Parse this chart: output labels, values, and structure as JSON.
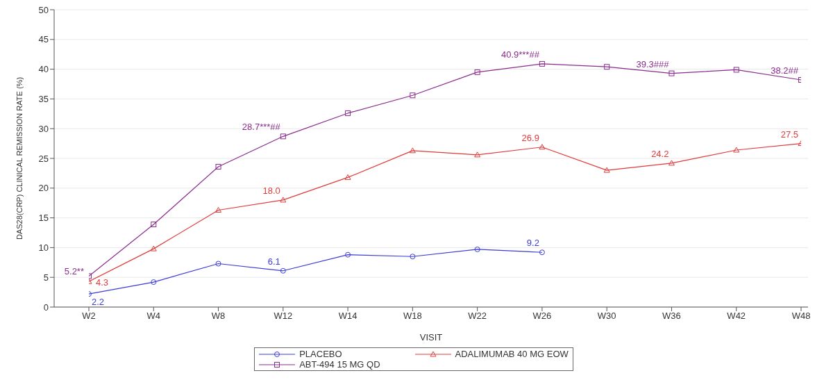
{
  "chart_data": {
    "type": "line",
    "xlabel": "VISIT",
    "ylabel": "DAS28(CRP) CLINICAL REMISSION RATE (%)",
    "categories": [
      "W2",
      "W4",
      "W8",
      "W12",
      "W14",
      "W18",
      "W22",
      "W26",
      "W30",
      "W36",
      "W42",
      "W48"
    ],
    "ylim": [
      0,
      50
    ],
    "yticks": [
      0,
      5,
      10,
      15,
      20,
      25,
      30,
      35,
      40,
      45,
      50
    ],
    "grid": "y",
    "legend": "bottom",
    "series": [
      {
        "name": "PLACEBO",
        "color": "#3a3ad8",
        "marker": "circle",
        "values": [
          2.2,
          4.2,
          7.3,
          6.1,
          8.8,
          8.5,
          9.7,
          9.2,
          null,
          null,
          null,
          null
        ],
        "value_labels": [
          "2.2",
          null,
          null,
          "6.1",
          null,
          null,
          null,
          "9.2",
          null,
          null,
          null,
          null
        ]
      },
      {
        "name": "ADALIMUMAB 40 MG EOW",
        "color": "#e03a3a",
        "marker": "triangle",
        "values": [
          4.3,
          9.8,
          16.3,
          18.0,
          21.8,
          26.3,
          25.6,
          26.9,
          23.0,
          24.2,
          26.4,
          27.5
        ],
        "value_labels": [
          "4.3",
          null,
          null,
          "18.0",
          null,
          null,
          null,
          "26.9",
          null,
          "24.2",
          null,
          "27.5"
        ]
      },
      {
        "name": "ABT-494 15 MG QD",
        "color": "#8a2b8e",
        "marker": "square",
        "values": [
          5.2,
          13.9,
          23.6,
          28.7,
          32.6,
          35.6,
          39.5,
          40.9,
          40.4,
          39.3,
          39.9,
          38.2
        ],
        "value_labels": [
          "5.2**",
          null,
          null,
          "28.7***##",
          null,
          null,
          null,
          "40.9***##",
          null,
          "39.3###",
          null,
          "38.2##"
        ]
      }
    ]
  }
}
